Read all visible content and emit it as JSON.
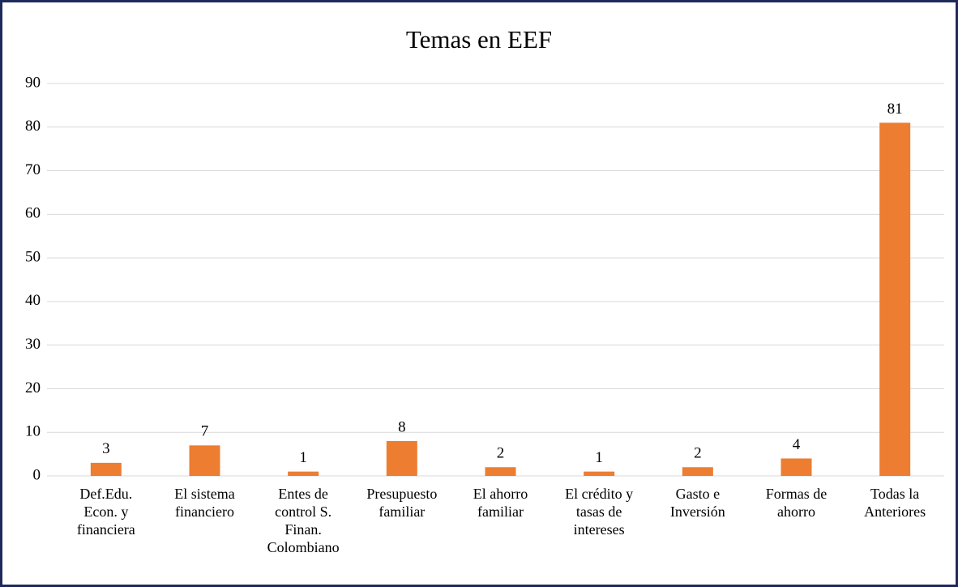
{
  "chart_data": {
    "type": "bar",
    "title": "Temas en EEF",
    "categories": [
      "Def.Edu. Econ. y financiera",
      "El sistema financiero",
      "Entes de control S. Finan. Colombiano",
      "Presupuesto familiar",
      "El ahorro familiar",
      "El crédito y tasas de intereses",
      "Gasto e Inversión",
      "Formas de ahorro",
      "Todas la Anteriores"
    ],
    "values": [
      3,
      7,
      1,
      8,
      2,
      1,
      2,
      4,
      81
    ],
    "color": "#ed7d31",
    "ylim": [
      0,
      90
    ],
    "yticks": [
      0,
      10,
      20,
      30,
      40,
      50,
      60,
      70,
      80,
      90
    ],
    "grid": true
  }
}
